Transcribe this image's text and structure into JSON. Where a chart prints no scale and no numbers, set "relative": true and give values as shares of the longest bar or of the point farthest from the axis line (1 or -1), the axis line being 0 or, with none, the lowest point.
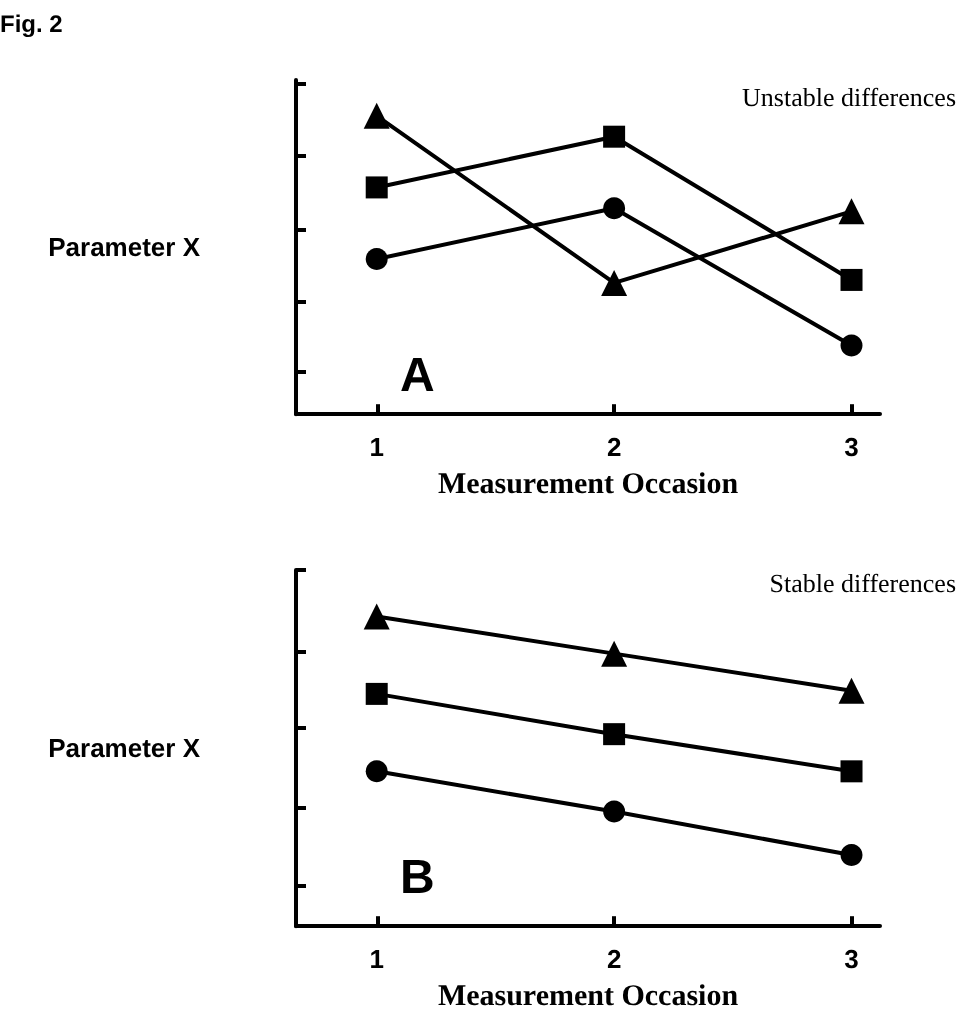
{
  "chart_data": [
    {
      "type": "line",
      "x": [
        1,
        2,
        3
      ],
      "xlim": [
        0.66,
        3.12
      ],
      "xticks": [
        1,
        2,
        3
      ],
      "xlabel": "Measurement Occasion",
      "ylabel": "Parameter X",
      "relative": true,
      "grid": false,
      "line_style": "solid",
      "annotations": [
        "Unstable differences",
        "A",
        "Fig. 2"
      ],
      "series": [
        {
          "color": "#000000",
          "marker": "triangle",
          "values": [
            1,
            0.44,
            0.68
          ]
        },
        {
          "color": "#000000",
          "marker": "square",
          "values": [
            0.76,
            0.93,
            0.45
          ]
        },
        {
          "color": "#000000",
          "marker": "circle",
          "values": [
            0.52,
            0.69,
            0.23
          ]
        }
      ]
    },
    {
      "type": "line",
      "x": [
        1,
        2,
        3
      ],
      "xlim": [
        0.66,
        3.12
      ],
      "xticks": [
        1,
        2,
        3
      ],
      "xlabel": "Measurement Occasion",
      "ylabel": "Parameter X",
      "relative": true,
      "grid": false,
      "line_style": "solid",
      "annotations": [
        "Stable differences",
        "B"
      ],
      "series": [
        {
          "color": "#000000",
          "marker": "triangle",
          "values": [
            1,
            0.88,
            0.76
          ]
        },
        {
          "color": "#000000",
          "marker": "square",
          "values": [
            0.75,
            0.62,
            0.5
          ]
        },
        {
          "color": "#000000",
          "marker": "circle",
          "values": [
            0.5,
            0.37,
            0.23
          ]
        }
      ]
    }
  ]
}
